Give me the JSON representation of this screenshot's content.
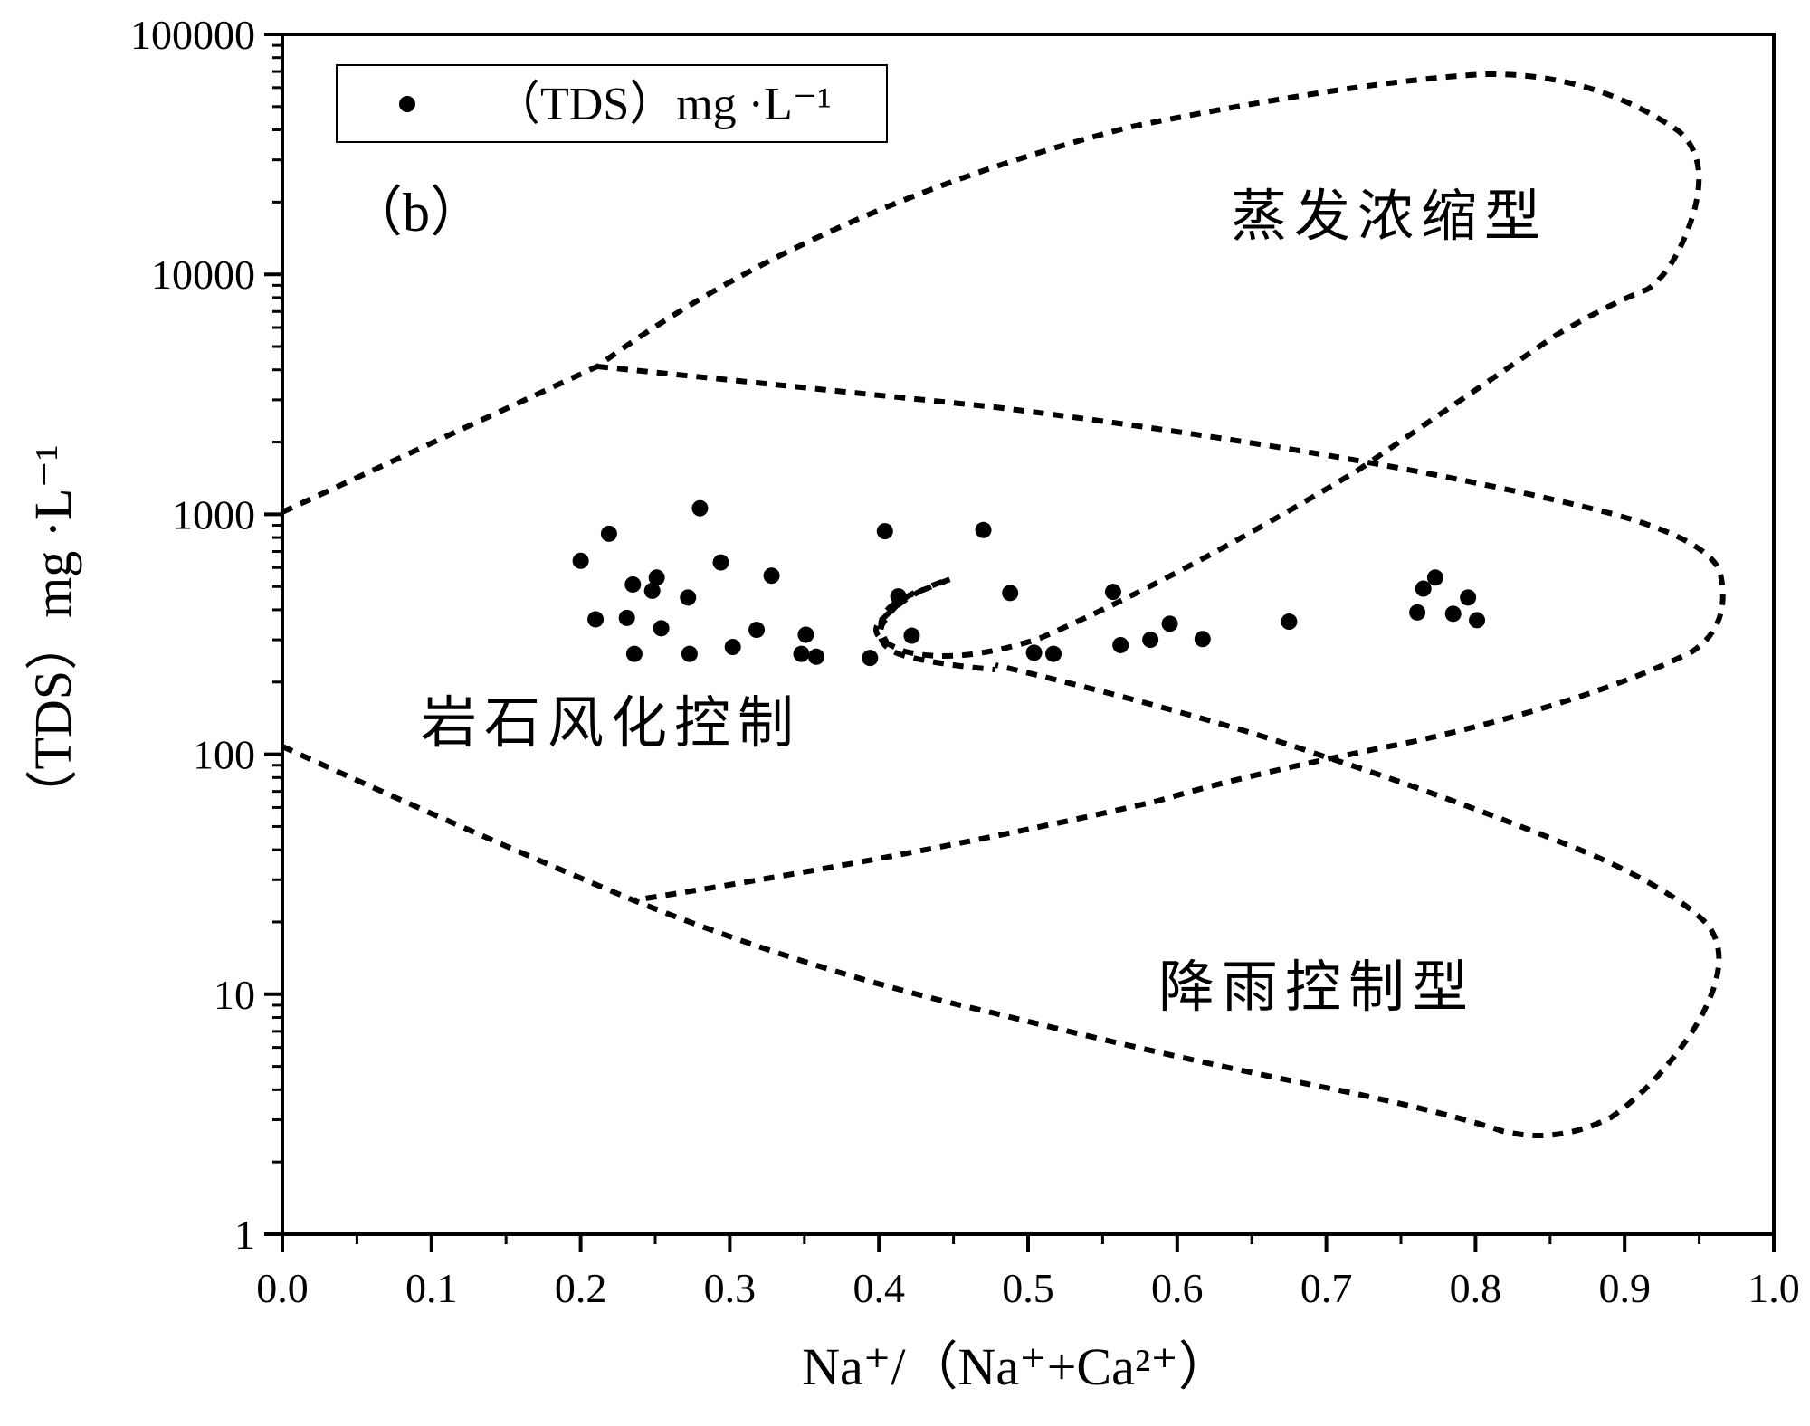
{
  "chart_data": {
    "type": "scatter",
    "panel_label": "（b）",
    "xlabel": "Na⁺/（Na⁺+Ca²⁺）",
    "ylabel": "（TDS）mg ·L⁻¹",
    "xlim": [
      0.0,
      1.0
    ],
    "ylim": [
      1,
      100000
    ],
    "yscale": "log",
    "x_ticks": [
      "0.0",
      "0.1",
      "0.2",
      "0.3",
      "0.4",
      "0.5",
      "0.6",
      "0.7",
      "0.8",
      "0.9",
      "1.0"
    ],
    "y_ticks": [
      "1",
      "10",
      "100",
      "1000",
      "10000",
      "100000"
    ],
    "legend": {
      "label": "（TDS）mg ·L⁻¹",
      "position": "top-left"
    },
    "regions": [
      {
        "label": "蒸发浓缩型"
      },
      {
        "label": "岩石风化控制"
      },
      {
        "label": "降雨控制型"
      }
    ],
    "series": [
      {
        "name": "（TDS）mg ·L⁻¹",
        "points": [
          [
            0.2,
            640
          ],
          [
            0.219,
            830
          ],
          [
            0.21,
            365
          ],
          [
            0.235,
            510
          ],
          [
            0.231,
            370
          ],
          [
            0.236,
            262
          ],
          [
            0.248,
            480
          ],
          [
            0.251,
            545
          ],
          [
            0.254,
            335
          ],
          [
            0.272,
            450
          ],
          [
            0.273,
            262
          ],
          [
            0.28,
            1060
          ],
          [
            0.294,
            630
          ],
          [
            0.302,
            280
          ],
          [
            0.318,
            330
          ],
          [
            0.328,
            555
          ],
          [
            0.348,
            262
          ],
          [
            0.351,
            315
          ],
          [
            0.358,
            255
          ],
          [
            0.394,
            252
          ],
          [
            0.404,
            850
          ],
          [
            0.413,
            455
          ],
          [
            0.422,
            312
          ],
          [
            0.47,
            860
          ],
          [
            0.488,
            470
          ],
          [
            0.504,
            265
          ],
          [
            0.517,
            262
          ],
          [
            0.557,
            475
          ],
          [
            0.562,
            285
          ],
          [
            0.582,
            300
          ],
          [
            0.595,
            350
          ],
          [
            0.617,
            302
          ],
          [
            0.675,
            357
          ],
          [
            0.761,
            390
          ],
          [
            0.765,
            490
          ],
          [
            0.773,
            545
          ],
          [
            0.785,
            385
          ],
          [
            0.795,
            450
          ],
          [
            0.801,
            362
          ]
        ]
      }
    ]
  }
}
